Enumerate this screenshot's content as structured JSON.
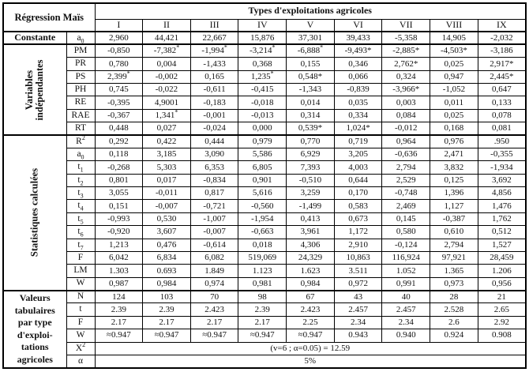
{
  "table": {
    "corner_title": "Régression Maïs",
    "header_title": "Types d'exploitations agricoles",
    "columns": [
      "I",
      "II",
      "III",
      "IV",
      "V",
      "VI",
      "VII",
      "VIII",
      "IX"
    ],
    "groups": [
      {
        "label": "Constante",
        "label_style": "plain",
        "label_lines": [
          "Constante"
        ],
        "rows": [
          {
            "name": "a_0",
            "values": [
              "2,960",
              "44,421",
              "22,667",
              "15,876",
              "37,301",
              "39,433",
              "-5,358",
              "14,905",
              "-2,032"
            ]
          }
        ]
      },
      {
        "label": "Variables indépendantes",
        "label_style": "rotated",
        "label_lines": [
          "Variables",
          "indépendantes"
        ],
        "rows": [
          {
            "name": "PM",
            "values": [
              "-0,850",
              "-7,382^*",
              "-1,994^*",
              "-3,214^*",
              "-6,888^*",
              "-9,493*",
              "-2,885*",
              "-4,503*",
              "-3,186"
            ]
          },
          {
            "name": "PR",
            "values": [
              "0,780",
              "0,004",
              "-1,433",
              "0,368",
              "0,155",
              "0,346",
              "2,762*",
              "0,025",
              "2,917*"
            ]
          },
          {
            "name": "PS",
            "values": [
              "2,399^*",
              "-0,002",
              "0,165",
              "1,235^*",
              "0,548*",
              "0,066",
              "0,324",
              "0,947",
              "2,445*"
            ]
          },
          {
            "name": "PH",
            "values": [
              "0,745",
              "-0,022",
              "-0,611",
              "-0,415",
              "-1,343",
              "-0,839",
              "-3,966*",
              "-1,052",
              "0,647"
            ]
          },
          {
            "name": "RE",
            "values": [
              "-0,395",
              "4,9001",
              "-0,183",
              "-0,018",
              "0,014",
              "0,035",
              "0,003",
              "0,011",
              "0,133"
            ]
          },
          {
            "name": "RAE",
            "values": [
              "-0,367",
              "1,341^*",
              "-0,001",
              "-0,013",
              "0,314",
              "0,334",
              "0,084",
              "0,025",
              "0,078"
            ]
          },
          {
            "name": "RT",
            "values": [
              "0,448",
              "0,027",
              "-0,024",
              "0,000",
              "0,539*",
              "1,024*",
              "-0,012",
              "0,168",
              "0,081"
            ]
          }
        ]
      },
      {
        "label": "Statistiques calculées",
        "label_style": "rotated",
        "label_lines": [
          "Statistiques calculées"
        ],
        "rows": [
          {
            "name": "R^2",
            "values": [
              "0,292",
              "0,422",
              "0,444",
              "0,979",
              "0,770",
              "0,719",
              "0,964",
              "0,976",
              ".950"
            ]
          },
          {
            "name": "a_0",
            "values": [
              "0,118",
              "3,185",
              "3,090",
              "5,586",
              "6,929",
              "3,205",
              "-0,636",
              "2,471",
              "-0,355"
            ]
          },
          {
            "name": "t_1",
            "values": [
              "-0,268",
              "5,303",
              "6,353",
              "6,805",
              "7,393",
              "4,003",
              "2,794",
              "3,832",
              "-1,934"
            ]
          },
          {
            "name": "t_2",
            "values": [
              "0,801",
              "0,017",
              "-0,834",
              "0,901",
              "-0,510",
              "0,644",
              "2,529",
              "0,125",
              "3,692"
            ]
          },
          {
            "name": "t_3",
            "values": [
              "3,055",
              "-0,011",
              "0,817",
              "5,616",
              "3,259",
              "0,170",
              "-0,748",
              "1,396",
              "4,856"
            ]
          },
          {
            "name": "t_4",
            "values": [
              "0,151",
              "-0,007",
              "-0,721",
              "-0,560",
              "-1,499",
              "0,583",
              "2,469",
              "1,127",
              "1,476"
            ]
          },
          {
            "name": "t_5",
            "values": [
              "-0,993",
              "0,530",
              "-1,007",
              "-1,954",
              "0,413",
              "0,673",
              "0,145",
              "-0,387",
              "1,762"
            ]
          },
          {
            "name": "t_6",
            "values": [
              "-0,920",
              "3,607",
              "-0,007",
              "-0,663",
              "3,961",
              "1,172",
              "0,580",
              "0,610",
              "0,512"
            ]
          },
          {
            "name": "t_7",
            "values": [
              "1,213",
              "0,476",
              "-0,614",
              "0,018",
              "4,306",
              "2,910",
              "-0,124",
              "2,794",
              "1,527"
            ]
          },
          {
            "name": "F",
            "values": [
              "6,042",
              "6,834",
              "6,082",
              "519,069",
              "24,329",
              "10,863",
              "116,924",
              "97,921",
              "28,459"
            ]
          },
          {
            "name": "LM",
            "values": [
              "1.303",
              "0.693",
              "1.849",
              "1.123",
              "1.623",
              "3.511",
              "1.052",
              "1.365",
              "1.206"
            ]
          },
          {
            "name": "W",
            "values": [
              "0,987",
              "0,984",
              "0,974",
              "0,981",
              "0,984",
              "0,972",
              "0,991",
              "0,973",
              "0,956"
            ]
          }
        ]
      },
      {
        "label": "Valeurs tabulaires par type d'exploitations agricoles",
        "label_style": "stacked",
        "label_lines": [
          "Valeurs",
          "tabulaires",
          "par type",
          "d'exploi-",
          "tations",
          "agricoles"
        ],
        "rows": [
          {
            "name": "N",
            "values": [
              "124",
              "103",
              "70",
              "98",
              "67",
              "43",
              "40",
              "28",
              "21"
            ]
          },
          {
            "name": "t",
            "values": [
              "2.39",
              "2.39",
              "2.423",
              "2.39",
              "2.423",
              "2.457",
              "2.457",
              "2.528",
              "2.65"
            ]
          },
          {
            "name": "F",
            "values": [
              "2.17",
              "2.17",
              "2.17",
              "2.17",
              "2.25",
              "2.34",
              "2.34",
              "2.6",
              "2.92"
            ]
          },
          {
            "name": "W",
            "values": [
              "≈0.947",
              "≈0.947",
              "≈0.947",
              "≈0.947",
              "≈0.947",
              "0.943",
              "0.940",
              "0.924",
              "0.908"
            ]
          },
          {
            "name": "X^2",
            "merged_value": "(v=6 ; α=0.05) = 12.59"
          },
          {
            "name": "α",
            "merged_value": "5%"
          }
        ]
      }
    ]
  }
}
